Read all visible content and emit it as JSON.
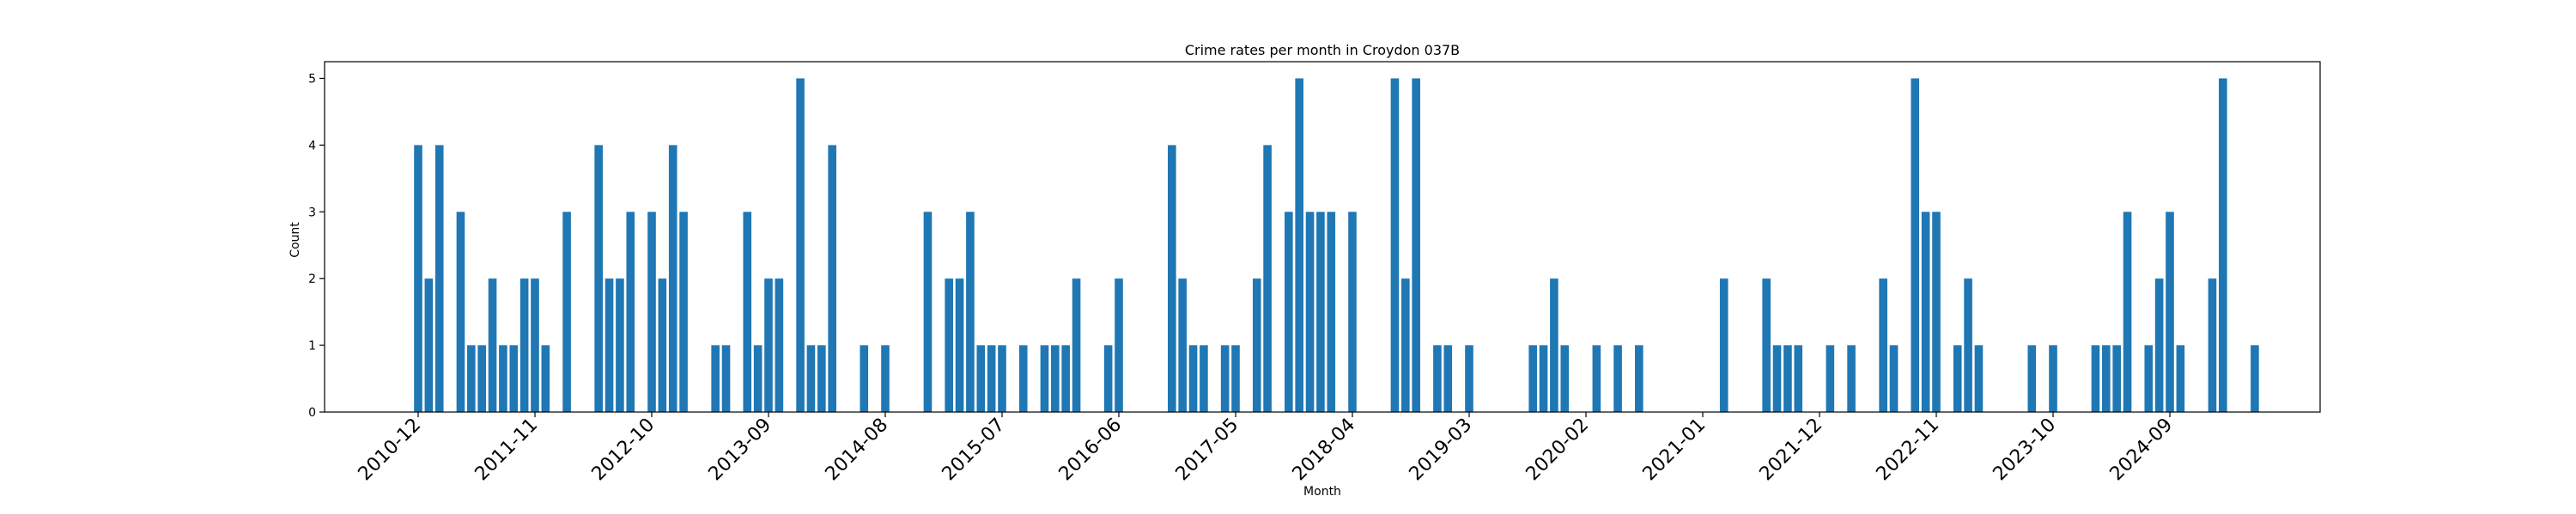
{
  "chart_data": {
    "type": "bar",
    "title": "Crime rates per month in Croydon 037B",
    "xlabel": "Month",
    "ylabel": "Count",
    "ylim": [
      0,
      5.25
    ],
    "yticks": [
      0,
      1,
      2,
      3,
      4,
      5
    ],
    "xticks": [
      "2010-12",
      "2011-11",
      "2012-10",
      "2013-09",
      "2014-08",
      "2015-07",
      "2016-06",
      "2017-05",
      "2018-04",
      "2019-03",
      "2020-02",
      "2021-01",
      "2021-12",
      "2022-11",
      "2023-10",
      "2024-09"
    ],
    "grid": false,
    "color": "#1f77b4",
    "bars": [
      [
        "2010-12",
        4
      ],
      [
        "2011-01",
        2
      ],
      [
        "2011-02",
        4
      ],
      [
        "2011-04",
        3
      ],
      [
        "2011-05",
        1
      ],
      [
        "2011-06",
        1
      ],
      [
        "2011-07",
        2
      ],
      [
        "2011-08",
        1
      ],
      [
        "2011-09",
        1
      ],
      [
        "2011-10",
        2
      ],
      [
        "2011-11",
        2
      ],
      [
        "2011-12",
        1
      ],
      [
        "2012-02",
        3
      ],
      [
        "2012-05",
        4
      ],
      [
        "2012-06",
        2
      ],
      [
        "2012-07",
        2
      ],
      [
        "2012-08",
        3
      ],
      [
        "2012-10",
        3
      ],
      [
        "2012-11",
        2
      ],
      [
        "2012-12",
        4
      ],
      [
        "2013-01",
        3
      ],
      [
        "2013-04",
        1
      ],
      [
        "2013-05",
        1
      ],
      [
        "2013-07",
        3
      ],
      [
        "2013-08",
        1
      ],
      [
        "2013-09",
        2
      ],
      [
        "2013-10",
        2
      ],
      [
        "2013-12",
        5
      ],
      [
        "2014-01",
        1
      ],
      [
        "2014-02",
        1
      ],
      [
        "2014-03",
        4
      ],
      [
        "2014-06",
        1
      ],
      [
        "2014-08",
        1
      ],
      [
        "2014-12",
        3
      ],
      [
        "2015-02",
        2
      ],
      [
        "2015-03",
        2
      ],
      [
        "2015-04",
        3
      ],
      [
        "2015-05",
        1
      ],
      [
        "2015-06",
        1
      ],
      [
        "2015-07",
        1
      ],
      [
        "2015-09",
        1
      ],
      [
        "2015-11",
        1
      ],
      [
        "2015-12",
        1
      ],
      [
        "2016-01",
        1
      ],
      [
        "2016-02",
        2
      ],
      [
        "2016-05",
        1
      ],
      [
        "2016-06",
        2
      ],
      [
        "2016-11",
        4
      ],
      [
        "2016-12",
        2
      ],
      [
        "2017-01",
        1
      ],
      [
        "2017-02",
        1
      ],
      [
        "2017-04",
        1
      ],
      [
        "2017-05",
        1
      ],
      [
        "2017-07",
        2
      ],
      [
        "2017-08",
        4
      ],
      [
        "2017-10",
        3
      ],
      [
        "2017-11",
        5
      ],
      [
        "2017-12",
        3
      ],
      [
        "2018-01",
        3
      ],
      [
        "2018-02",
        3
      ],
      [
        "2018-04",
        3
      ],
      [
        "2018-08",
        5
      ],
      [
        "2018-09",
        2
      ],
      [
        "2018-10",
        5
      ],
      [
        "2018-12",
        1
      ],
      [
        "2019-01",
        1
      ],
      [
        "2019-03",
        1
      ],
      [
        "2019-09",
        1
      ],
      [
        "2019-10",
        1
      ],
      [
        "2019-11",
        2
      ],
      [
        "2019-12",
        1
      ],
      [
        "2020-03",
        1
      ],
      [
        "2020-05",
        1
      ],
      [
        "2020-07",
        1
      ],
      [
        "2021-03",
        2
      ],
      [
        "2021-07",
        2
      ],
      [
        "2021-08",
        1
      ],
      [
        "2021-09",
        1
      ],
      [
        "2021-10",
        1
      ],
      [
        "2022-01",
        1
      ],
      [
        "2022-03",
        1
      ],
      [
        "2022-06",
        2
      ],
      [
        "2022-07",
        1
      ],
      [
        "2022-09",
        5
      ],
      [
        "2022-10",
        3
      ],
      [
        "2022-11",
        3
      ],
      [
        "2023-01",
        1
      ],
      [
        "2023-02",
        2
      ],
      [
        "2023-03",
        1
      ],
      [
        "2023-08",
        1
      ],
      [
        "2023-10",
        1
      ],
      [
        "2024-02",
        1
      ],
      [
        "2024-03",
        1
      ],
      [
        "2024-04",
        1
      ],
      [
        "2024-05",
        3
      ],
      [
        "2024-07",
        1
      ],
      [
        "2024-08",
        2
      ],
      [
        "2024-09",
        3
      ],
      [
        "2024-10",
        1
      ],
      [
        "2025-01",
        2
      ],
      [
        "2025-02",
        5
      ],
      [
        "2025-05",
        1
      ]
    ]
  }
}
